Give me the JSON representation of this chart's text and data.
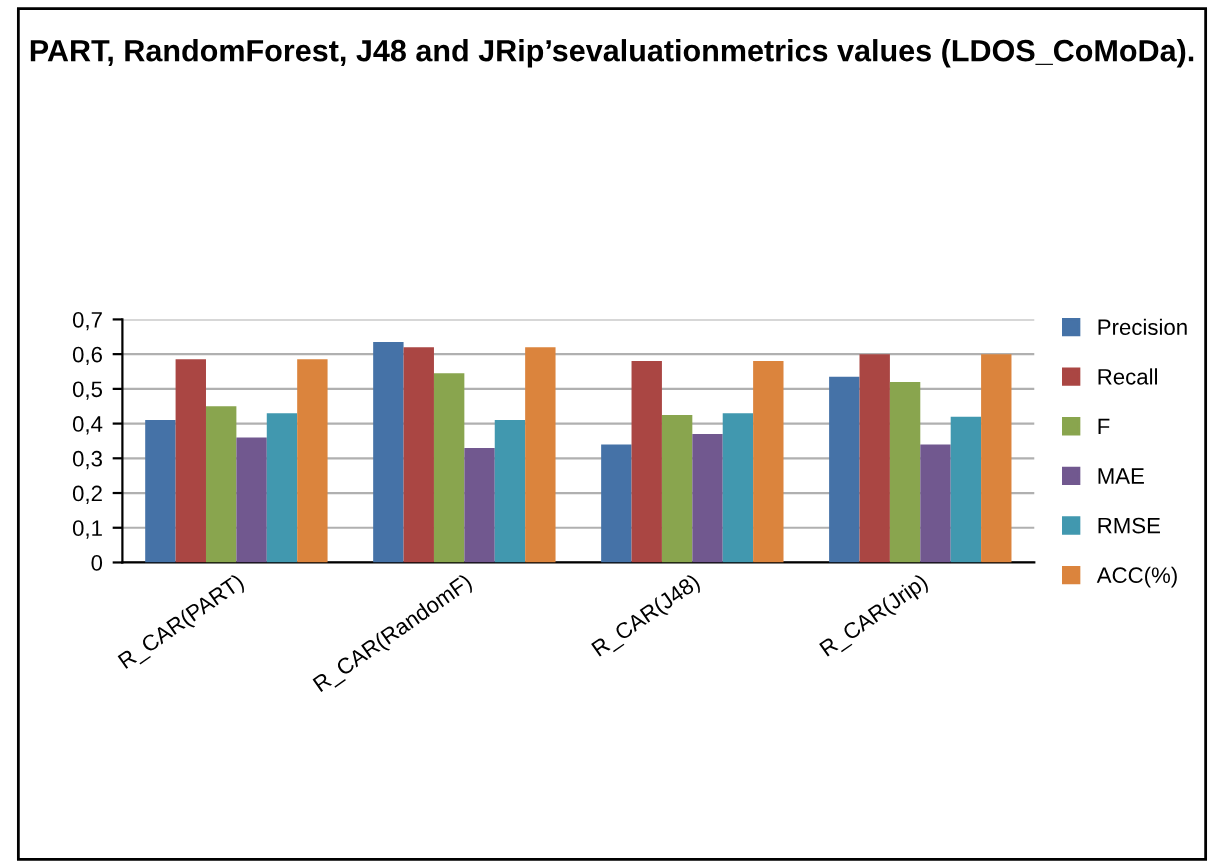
{
  "chart_data": {
    "type": "bar",
    "title": "PART, RandomForest, J48 and JRip’sevaluationmetrics values (LDOS_CoMoDa).",
    "categories": [
      "R_CAR(PART)",
      "R_CAR(RandomF)",
      "R_CAR(J48)",
      "R_CAR(Jrip)"
    ],
    "series": [
      {
        "name": "Precision",
        "color": "#4572a7",
        "values": [
          0.41,
          0.635,
          0.34,
          0.535
        ]
      },
      {
        "name": "Recall",
        "color": "#aa4643",
        "values": [
          0.585,
          0.62,
          0.58,
          0.6
        ]
      },
      {
        "name": "F",
        "color": "#89a54e",
        "values": [
          0.45,
          0.545,
          0.425,
          0.52
        ]
      },
      {
        "name": "MAE",
        "color": "#71588f",
        "values": [
          0.36,
          0.33,
          0.37,
          0.34
        ]
      },
      {
        "name": "RMSE",
        "color": "#4198af",
        "values": [
          0.43,
          0.41,
          0.43,
          0.42
        ]
      },
      {
        "name": "ACC(%)",
        "color": "#db843d",
        "values": [
          0.585,
          0.62,
          0.58,
          0.6
        ]
      }
    ],
    "ylim": [
      0,
      0.7
    ],
    "yticks": [
      {
        "value": 0,
        "label": "0"
      },
      {
        "value": 0.1,
        "label": "0,1"
      },
      {
        "value": 0.2,
        "label": "0,2"
      },
      {
        "value": 0.3,
        "label": "0,3"
      },
      {
        "value": 0.4,
        "label": "0,4"
      },
      {
        "value": 0.5,
        "label": "0,5"
      },
      {
        "value": 0.6,
        "label": "0,6"
      },
      {
        "value": 0.7,
        "label": "0,7"
      }
    ],
    "grid": "y",
    "legend": "right"
  }
}
